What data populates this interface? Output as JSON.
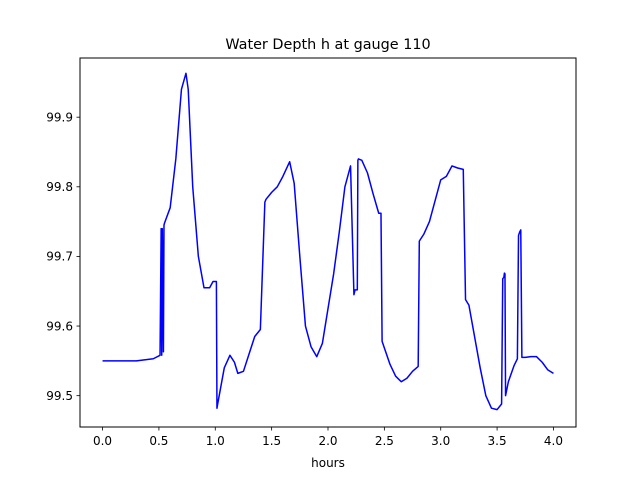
{
  "chart_data": {
    "type": "line",
    "title": "Water Depth h at gauge 110",
    "xlabel": "hours",
    "ylabel": "",
    "xlim": [
      -0.2,
      4.2
    ],
    "ylim": [
      99.455,
      99.985
    ],
    "xticks": [
      0.0,
      0.5,
      1.0,
      1.5,
      2.0,
      2.5,
      3.0,
      3.5,
      4.0
    ],
    "xtick_labels": [
      "0.0",
      "0.5",
      "1.0",
      "1.5",
      "2.0",
      "2.5",
      "3.0",
      "3.5",
      "4.0"
    ],
    "yticks": [
      99.5,
      99.6,
      99.7,
      99.8,
      99.9
    ],
    "ytick_labels": [
      "99.5",
      "99.6",
      "99.7",
      "99.8",
      "99.9"
    ],
    "grid": false,
    "color": "#0000ff",
    "series": [
      {
        "x": [
          0.0,
          0.3,
          0.45,
          0.51,
          0.52,
          0.525,
          0.53,
          0.54,
          0.545,
          0.55,
          0.6,
          0.65,
          0.7,
          0.74,
          0.76,
          0.8,
          0.85,
          0.9,
          0.95,
          0.98,
          1.01,
          1.015,
          1.02,
          1.08,
          1.13,
          1.17,
          1.2,
          1.25,
          1.3,
          1.35,
          1.4,
          1.44,
          1.45,
          1.5,
          1.55,
          1.6,
          1.66,
          1.7,
          1.75,
          1.8,
          1.85,
          1.9,
          1.95,
          2.0,
          2.05,
          2.1,
          2.15,
          2.2,
          2.23,
          2.24,
          2.26,
          2.265,
          2.27,
          2.3,
          2.35,
          2.4,
          2.45,
          2.47,
          2.48,
          2.55,
          2.6,
          2.65,
          2.7,
          2.75,
          2.8,
          2.81,
          2.85,
          2.9,
          2.95,
          3.0,
          3.05,
          3.1,
          3.15,
          3.2,
          3.22,
          3.25,
          3.3,
          3.35,
          3.4,
          3.45,
          3.5,
          3.54,
          3.55,
          3.56,
          3.565,
          3.57,
          3.575,
          3.6,
          3.65,
          3.68,
          3.69,
          3.7,
          3.71,
          3.72,
          3.75,
          3.8,
          3.85,
          3.9,
          3.95,
          4.0
        ],
        "y": [
          99.55,
          99.55,
          99.553,
          99.558,
          99.74,
          99.558,
          99.74,
          99.563,
          99.745,
          99.748,
          99.77,
          99.84,
          99.94,
          99.963,
          99.94,
          99.8,
          99.7,
          99.655,
          99.655,
          99.664,
          99.664,
          99.482,
          99.487,
          99.54,
          99.558,
          99.548,
          99.532,
          99.535,
          99.56,
          99.585,
          99.595,
          99.778,
          99.782,
          99.792,
          99.8,
          99.815,
          99.836,
          99.805,
          99.7,
          99.6,
          99.57,
          99.556,
          99.575,
          99.625,
          99.675,
          99.735,
          99.8,
          99.83,
          99.645,
          99.652,
          99.652,
          99.838,
          99.84,
          99.838,
          99.82,
          99.79,
          99.762,
          99.762,
          99.578,
          99.545,
          99.528,
          99.52,
          99.525,
          99.535,
          99.542,
          99.722,
          99.732,
          99.75,
          99.78,
          99.81,
          99.815,
          99.83,
          99.827,
          99.825,
          99.638,
          99.63,
          99.585,
          99.54,
          99.5,
          99.482,
          99.48,
          99.488,
          99.668,
          99.67,
          99.676,
          99.675,
          99.5,
          99.52,
          99.543,
          99.553,
          99.73,
          99.735,
          99.738,
          99.555,
          99.555,
          99.556,
          99.556,
          99.548,
          99.537,
          99.532
        ]
      }
    ]
  }
}
